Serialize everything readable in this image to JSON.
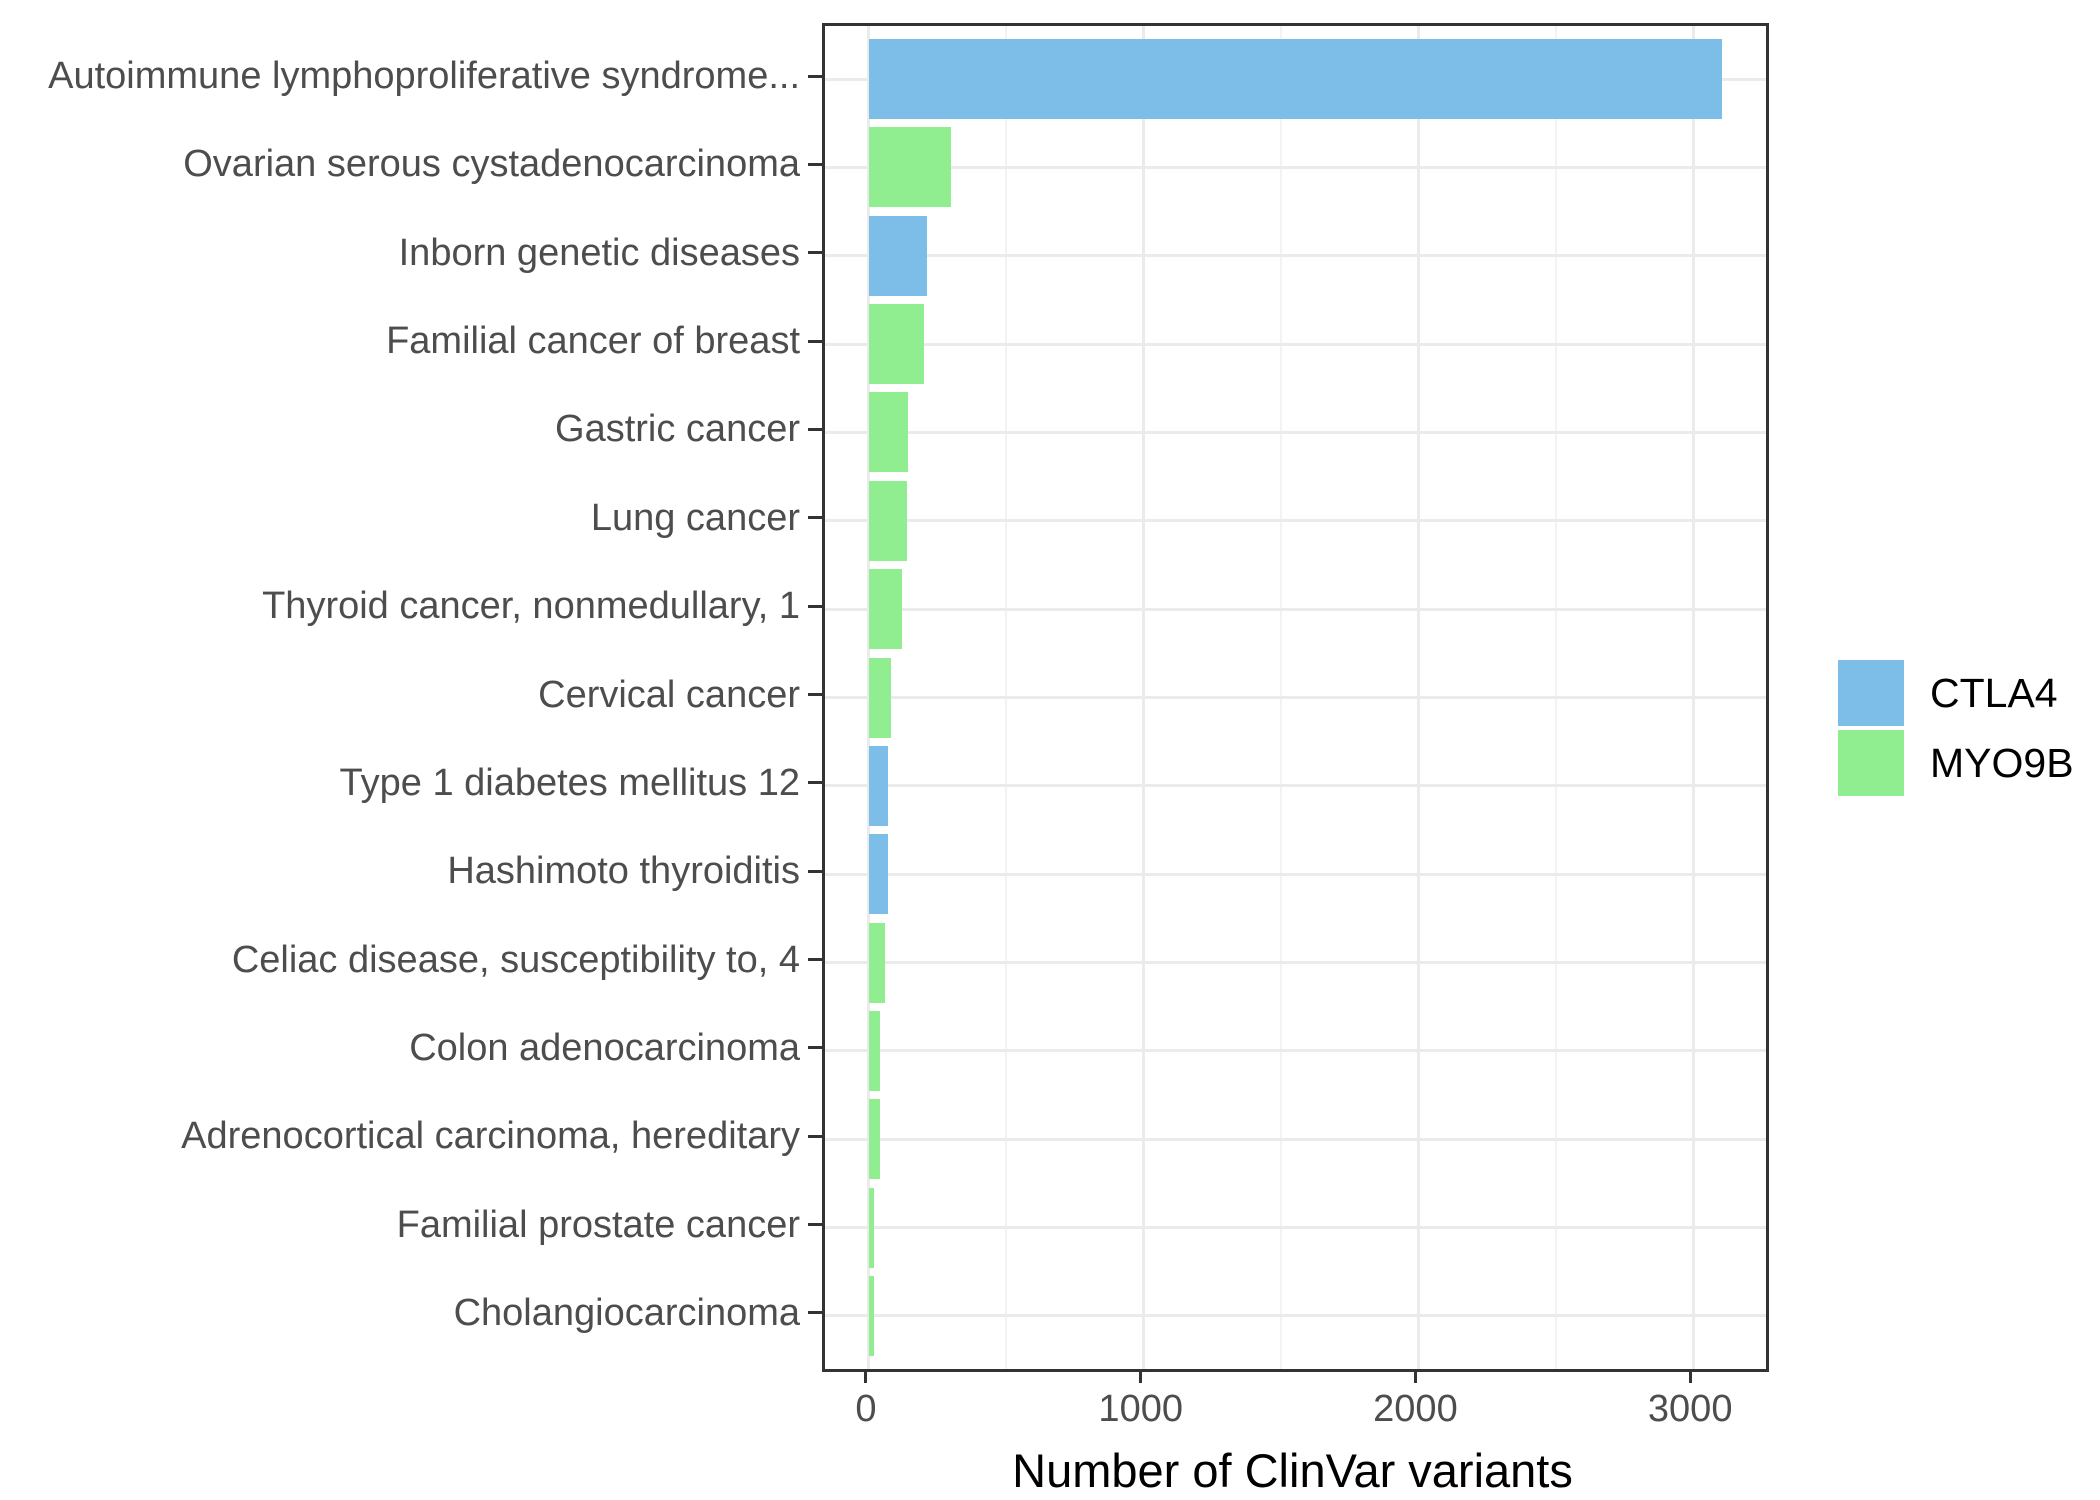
{
  "chart_data": {
    "type": "bar",
    "orientation": "horizontal",
    "title": "",
    "xlabel": "Number of ClinVar variants",
    "ylabel": "",
    "xlim": [
      -160,
      3265
    ],
    "x_ticks": [
      0,
      1000,
      2000,
      3000
    ],
    "x_minor_ticks": [
      500,
      1500,
      2500
    ],
    "grid": true,
    "legend_position": "right",
    "series_legend": [
      {
        "name": "CTLA4",
        "color": "#7cbee8"
      },
      {
        "name": "MYO9B",
        "color": "#90ee90"
      }
    ],
    "bars": [
      {
        "category": "Autoimmune lymphoproliferative syndrome...",
        "value": 3105,
        "series": "CTLA4"
      },
      {
        "category": "Ovarian serous cystadenocarcinoma",
        "value": 300,
        "series": "MYO9B"
      },
      {
        "category": "Inborn genetic diseases",
        "value": 210,
        "series": "CTLA4"
      },
      {
        "category": "Familial cancer of breast",
        "value": 200,
        "series": "MYO9B"
      },
      {
        "category": "Gastric cancer",
        "value": 142,
        "series": "MYO9B"
      },
      {
        "category": "Lung cancer",
        "value": 137,
        "series": "MYO9B"
      },
      {
        "category": "Thyroid cancer, nonmedullary, 1",
        "value": 120,
        "series": "MYO9B"
      },
      {
        "category": "Cervical cancer",
        "value": 79,
        "series": "MYO9B"
      },
      {
        "category": "Type 1 diabetes mellitus 12",
        "value": 70,
        "series": "CTLA4"
      },
      {
        "category": "Hashimoto thyroiditis",
        "value": 68,
        "series": "CTLA4"
      },
      {
        "category": "Celiac disease, susceptibility to, 4",
        "value": 57,
        "series": "MYO9B"
      },
      {
        "category": "Colon adenocarcinoma",
        "value": 42,
        "series": "MYO9B"
      },
      {
        "category": "Adrenocortical carcinoma, hereditary",
        "value": 41,
        "series": "MYO9B"
      },
      {
        "category": "Familial prostate cancer",
        "value": 19,
        "series": "MYO9B"
      },
      {
        "category": "Cholangiocarcinoma",
        "value": 17,
        "series": "MYO9B"
      }
    ]
  },
  "style": {
    "grid_major_color": "#ebebeb",
    "grid_minor_color": "#f3f3f3",
    "panel_border_color": "#333333",
    "tick_color": "#333333",
    "axis_text_color": "#4d4d4d",
    "axis_title_color": "#000000",
    "background": "#ffffff"
  }
}
